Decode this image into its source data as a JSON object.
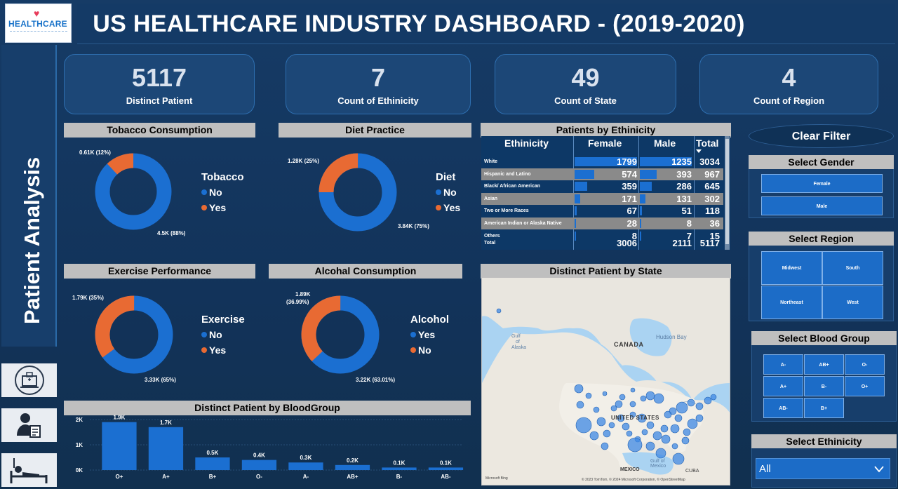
{
  "header": {
    "logo_text": "HEALTHCARE",
    "title": "US HEALTHCARE INDUSTRY DASHBOARD - (2019-2020)"
  },
  "left_rail": {
    "label": "Patient Analysis"
  },
  "kpis": [
    {
      "value": "5117",
      "label": "Distinct Patient"
    },
    {
      "value": "7",
      "label": "Count of Ethinicity"
    },
    {
      "value": "49",
      "label": "Count of State"
    },
    {
      "value": "4",
      "label": "Count of Region"
    }
  ],
  "donuts": {
    "tobacco": {
      "title": "Tobacco Consumption",
      "legend_title": "Tobacco",
      "legend": [
        "No",
        "Yes"
      ],
      "label_small": "0.61K (12%)",
      "label_large": "4.5K (88%)",
      "share_small": 0.12
    },
    "diet": {
      "title": "Diet Practice",
      "legend_title": "Diet",
      "legend": [
        "No",
        "Yes"
      ],
      "label_small": "1.28K (25%)",
      "label_large": "3.84K (75%)",
      "share_small": 0.25
    },
    "exercise": {
      "title": "Exercise Performance",
      "legend_title": "Exercise",
      "legend": [
        "No",
        "Yes"
      ],
      "label_small": "1.79K (35%)",
      "label_large": "3.33K (65%)",
      "share_small": 0.35
    },
    "alcohol": {
      "title": "Alcohal Consumption",
      "legend_title": "Alcohol",
      "legend": [
        "Yes",
        "No"
      ],
      "label_small_1": "1.89K",
      "label_small_2": "(36.99%)",
      "label_large": "3.22K (63.01%)",
      "share_small": 0.3699
    }
  },
  "ethnicity_table": {
    "title": "Patients by Ethinicity",
    "columns": [
      "Ethinicity",
      "Female",
      "Male",
      "Total"
    ],
    "rows": [
      {
        "name": "White",
        "female": "1799",
        "male": "1235",
        "total": "3034"
      },
      {
        "name": "Hispanic and Latino",
        "female": "574",
        "male": "393",
        "total": "967"
      },
      {
        "name": "Black/ African American",
        "female": "359",
        "male": "286",
        "total": "645"
      },
      {
        "name": "Asian",
        "female": "171",
        "male": "131",
        "total": "302"
      },
      {
        "name": "Two or More Races",
        "female": "67",
        "male": "51",
        "total": "118"
      },
      {
        "name": "American Indian or Alaska Native",
        "female": "28",
        "male": "8",
        "total": "36"
      },
      {
        "name": "Others",
        "female": "8",
        "male": "7",
        "total": "15"
      }
    ],
    "total_row": {
      "name": "Total",
      "female": "3006",
      "male": "2111",
      "total": "5117"
    }
  },
  "map": {
    "title": "Distinct Patient by State",
    "labels": {
      "canada": "CANADA",
      "us": "UNITED STATES",
      "mexico": "MEXICO",
      "cuba": "CUBA",
      "hudson": "Hudson Bay",
      "gulf_alaska_1": "Gulf",
      "gulf_alaska_2": "of",
      "gulf_alaska_3": "Alaska",
      "gulf_mexico_1": "Gulf of",
      "gulf_mexico_2": "Mexico"
    },
    "attribution": "© 2023 TomTom, © 2024 Microsoft Corporation, © OpenStreetMap",
    "bing": "Microsoft Bing"
  },
  "chart_data": {
    "type": "bar",
    "title": "Distinct Patient by BloodGroup",
    "categories": [
      "O+",
      "A+",
      "B+",
      "O-",
      "A-",
      "AB+",
      "B-",
      "AB-"
    ],
    "values": [
      1900,
      1700,
      500,
      400,
      300,
      200,
      100,
      100
    ],
    "data_labels": [
      "1.9K",
      "1.7K",
      "0.5K",
      "0.4K",
      "0.3K",
      "0.2K",
      "0.1K",
      "0.1K"
    ],
    "y_ticks": [
      "0K",
      "1K",
      "2K"
    ],
    "ylim": [
      0,
      2000
    ],
    "color": "#1b6fd1"
  },
  "filters": {
    "clear": "Clear Filter",
    "gender": {
      "title": "Select Gender",
      "options": [
        "Female",
        "Male"
      ]
    },
    "region": {
      "title": "Select Region",
      "options": [
        "Midwest",
        "South",
        "Northeast",
        "West"
      ]
    },
    "blood": {
      "title": "Select Blood Group",
      "options": [
        "A-",
        "AB+",
        "O-",
        "A+",
        "B-",
        "O+",
        "AB-",
        "B+"
      ]
    },
    "ethnicity": {
      "title": "Select Ethinicity",
      "selected": "All"
    }
  },
  "colors": {
    "blue": "#1b6fd1",
    "orange": "#e86a33",
    "panel": "#1c4777",
    "header_gray": "#bfbfbf"
  }
}
